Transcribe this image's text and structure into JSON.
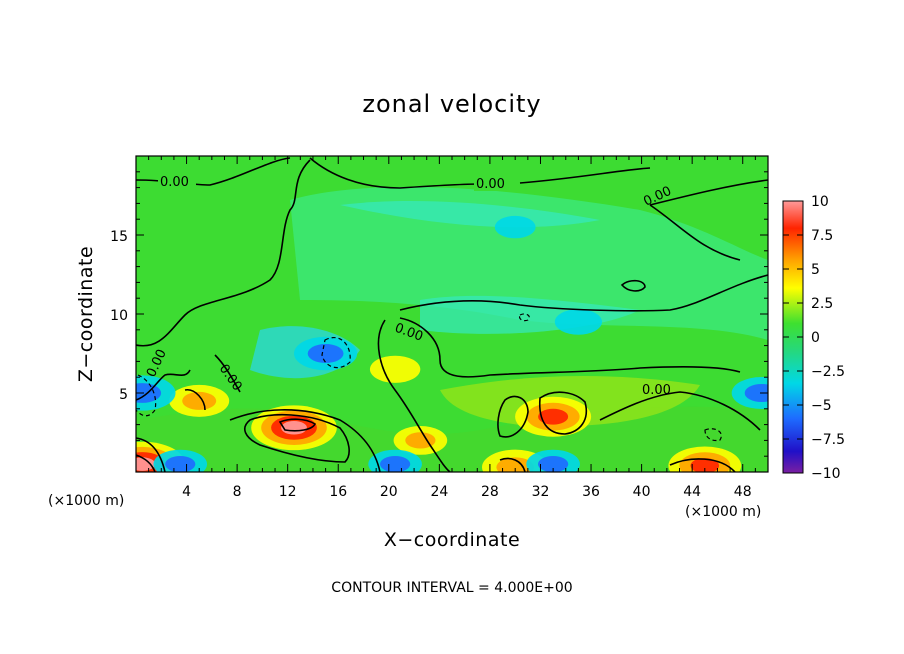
{
  "chart_data": {
    "type": "heatmap",
    "title": "zonal velocity",
    "xlabel": "X−coordinate",
    "ylabel": "Z−coordinate",
    "x_units": "(×1000 m)",
    "x_units_right": "(×1000 m)",
    "xlim": [
      0,
      50
    ],
    "ylim": [
      0,
      20
    ],
    "x_ticks": [
      4,
      8,
      12,
      16,
      20,
      24,
      28,
      32,
      36,
      40,
      44,
      48
    ],
    "x_tick_labels": [
      "4",
      "8",
      "12",
      "16",
      "20",
      "24",
      "28",
      "32",
      "36",
      "40",
      "44",
      "48"
    ],
    "y_ticks": [
      5,
      10,
      15
    ],
    "y_tick_labels": [
      "5",
      "10",
      "15"
    ],
    "colorbar": {
      "min": -10,
      "max": 10,
      "ticks": [
        10,
        7.5,
        5,
        2.5,
        0,
        -2.5,
        -5,
        -7.5,
        -10
      ],
      "tick_labels": [
        "10",
        "7.5",
        "5",
        "2.5",
        "0",
        "−2.5",
        "−5",
        "−7.5",
        "−10"
      ],
      "colors": [
        "#7a1fa2",
        "#1a10c8",
        "#1e6bff",
        "#00d8e6",
        "#2ee05a",
        "#78e814",
        "#ffff00",
        "#ffa500",
        "#ff2400",
        "#ff9a9a"
      ]
    },
    "contour_labels": [
      "0.00",
      "0.00",
      "0.00",
      "0.00",
      "0.00",
      "0.00",
      "0.00"
    ],
    "contour_interval_text": "CONTOUR INTERVAL = 4.000E+00",
    "features": [
      {
        "x": 12.5,
        "z": 2.8,
        "value": 9.0
      },
      {
        "x": 33.0,
        "z": 3.5,
        "value": 7.5
      },
      {
        "x": 45.0,
        "z": 0.4,
        "value": 7.0
      },
      {
        "x": 30.0,
        "z": 0.3,
        "value": 6.0
      },
      {
        "x": 0.5,
        "z": 0.5,
        "value": 9.0
      },
      {
        "x": 5.0,
        "z": 4.5,
        "value": 5.0
      },
      {
        "x": 20.5,
        "z": 6.5,
        "value": 3.5
      },
      {
        "x": 22.5,
        "z": 2.0,
        "value": 4.0
      },
      {
        "x": 15.0,
        "z": 7.5,
        "value": -5.5
      },
      {
        "x": 0.5,
        "z": 5.0,
        "value": -6.0
      },
      {
        "x": 49.5,
        "z": 5.0,
        "value": -5.0
      },
      {
        "x": 20.5,
        "z": 0.5,
        "value": -4.0
      },
      {
        "x": 3.5,
        "z": 0.5,
        "value": -4.0
      },
      {
        "x": 33.0,
        "z": 0.5,
        "value": -4.0
      },
      {
        "x": 30.0,
        "z": 15.5,
        "value": -2.0
      },
      {
        "x": 35.0,
        "z": 9.5,
        "value": -3.0
      }
    ]
  }
}
